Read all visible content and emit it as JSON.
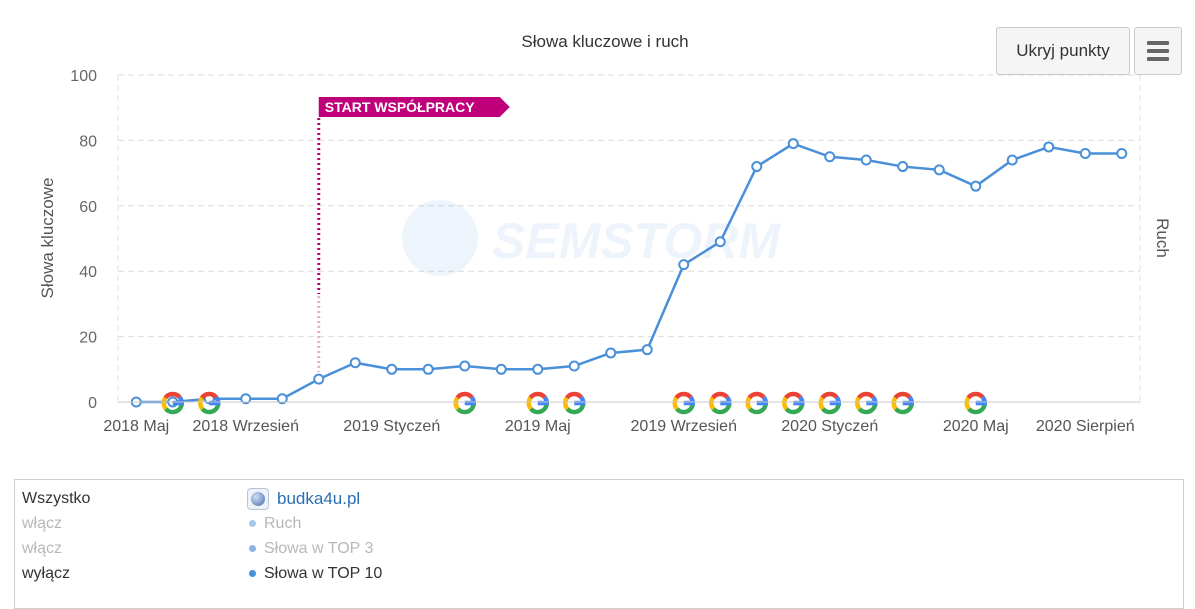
{
  "toolbar": {
    "hide_points_label": "Ukryj punkty",
    "menu_icon": "hamburger-menu-icon"
  },
  "chart_data": {
    "type": "line",
    "title": "Słowa kluczowe i ruch",
    "ylabel": "Słowa kluczowe",
    "ylabel_right": "Ruch",
    "ylim": [
      0,
      100
    ],
    "yticks": [
      0,
      20,
      40,
      60,
      80,
      100
    ],
    "xlim": [
      -0.5,
      27.5
    ],
    "xticks": [
      {
        "x": 0,
        "label": "2018 Maj"
      },
      {
        "x": 3,
        "label": "2018 Wrzesień"
      },
      {
        "x": 7,
        "label": "2019 Styczeń"
      },
      {
        "x": 11,
        "label": "2019 Maj"
      },
      {
        "x": 15,
        "label": "2019 Wrzesień"
      },
      {
        "x": 19,
        "label": "2020 Styczeń"
      },
      {
        "x": 23,
        "label": "2020 Maj"
      },
      {
        "x": 26,
        "label": "2020 Sierpień"
      }
    ],
    "series": [
      {
        "name": "Słowa w TOP 10",
        "color": "#4a90d9",
        "x": [
          0,
          1,
          2,
          3,
          4,
          5,
          6,
          7,
          8,
          9,
          10,
          11,
          12,
          13,
          14,
          15,
          16,
          17,
          18,
          19,
          20,
          21,
          22,
          23,
          24,
          25,
          26,
          27
        ],
        "values": [
          0,
          0,
          1,
          1,
          1,
          7,
          12,
          10,
          10,
          11,
          10,
          10,
          11,
          15,
          16,
          42,
          49,
          72,
          79,
          75,
          74,
          72,
          71,
          66,
          74,
          78,
          76,
          76
        ]
      }
    ],
    "annotation": {
      "x": 5,
      "label": "START WSPÓŁPRACY",
      "color": "#c0007a"
    },
    "google_update_markers_x": [
      1,
      2,
      9,
      11,
      12,
      15,
      16,
      17,
      18,
      19,
      20,
      21,
      23
    ],
    "watermark": "SEMSTORM",
    "grid": "horizontal-dashed",
    "legend": "bottom"
  },
  "legend": {
    "left": [
      "Wszystko",
      "włącz",
      "włącz",
      "wyłącz"
    ],
    "site": "budka4u.pl",
    "items": [
      {
        "label": "Ruch",
        "state": "muted",
        "color": "#a9c6ea"
      },
      {
        "label": "Słowa w TOP 3",
        "state": "muted",
        "color": "#8fb3e3"
      },
      {
        "label": "Słowa w TOP 10",
        "state": "active",
        "color": "#4a90d9"
      }
    ]
  }
}
